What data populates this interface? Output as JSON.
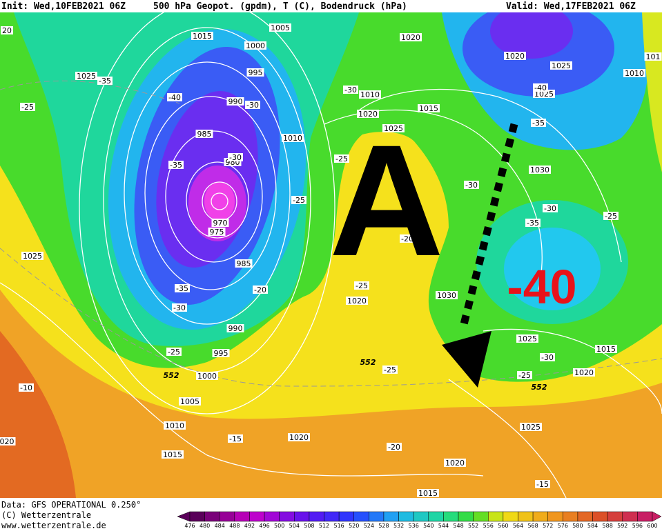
{
  "header": {
    "init": "Init: Wed,10FEB2021 06Z",
    "title": "500 hPa Geopot. (gpdm), T (C), Bodendruck (hPa)",
    "valid": "Valid: Wed,17FEB2021 06Z"
  },
  "map": {
    "isobar_labels": [
      "1015",
      "1005",
      "1000",
      "995",
      "990",
      "985",
      "980",
      "970",
      "975",
      "985",
      "990",
      "995",
      "1000",
      "1005",
      "1010",
      "1015",
      "1020",
      "1025",
      "1025",
      "1010",
      "1020",
      "1015",
      "1025",
      "1010",
      "1020",
      "1020",
      "1025",
      "1025",
      "1010",
      "1030",
      "1020",
      "1030",
      "1025",
      "1015",
      "1020",
      "1025",
      "1020",
      "1015",
      "101",
      "20",
      "020"
    ],
    "temperature_labels": [
      "-35",
      "-25",
      "-40",
      "-30",
      "-35",
      "-30",
      "-25",
      "-25",
      "-30",
      "-30",
      "-35",
      "-40",
      "-30",
      "-35",
      "-25",
      "-20",
      "-25",
      "-20",
      "-35",
      "-30",
      "-25",
      "-10",
      "-15",
      "-20",
      "-15",
      "-25",
      "-30",
      "-25"
    ],
    "height_labels": [
      "552",
      "552",
      "552"
    ],
    "annotations": {
      "high": "A",
      "temperature": "-40"
    }
  },
  "colorbar": {
    "labels": [
      476,
      480,
      484,
      488,
      492,
      496,
      500,
      504,
      508,
      512,
      516,
      520,
      524,
      528,
      532,
      536,
      540,
      544,
      548,
      552,
      556,
      560,
      564,
      568,
      572,
      576,
      580,
      584,
      588,
      592,
      596,
      600
    ]
  },
  "footer": {
    "data": "Data: GFS OPERATIONAL 0.250°",
    "copyright": "(C) Wetterzentrale",
    "url": "www.wetterzentrale.de"
  }
}
